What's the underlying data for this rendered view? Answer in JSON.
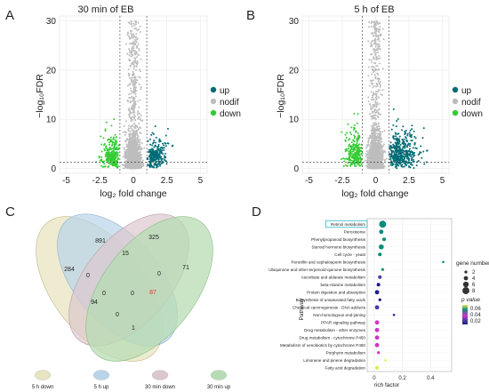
{
  "panels": {
    "A": {
      "letter": "A",
      "title": "30 min of EB"
    },
    "B": {
      "letter": "B",
      "title": "5 h of EB"
    },
    "C": {
      "letter": "C"
    },
    "D": {
      "letter": "D"
    }
  },
  "volcano": {
    "ylabel": "−log₁₀FDR",
    "xlabel": "log₂ fold change",
    "xticks": [
      "-5",
      "-2.5",
      "0",
      "2.5",
      "5"
    ],
    "yticks": [
      "0",
      "10",
      "20",
      "30"
    ],
    "legend": [
      {
        "label": "up",
        "color": "#006d77"
      },
      {
        "label": "nodif",
        "color": "#bdbdbd"
      },
      {
        "label": "down",
        "color": "#33cc33"
      }
    ]
  },
  "venn": {
    "numbers": {
      "n284": "284",
      "n891": "891",
      "n325": "325",
      "n71": "71",
      "n15": "15",
      "n0a": "0",
      "n0b": "0",
      "n0c": "0",
      "n0d": "0",
      "n0e": "0",
      "n94": "94",
      "n87": "87",
      "n1": "1"
    },
    "legend": [
      {
        "label": "5 h down",
        "color": "#e8e4c0"
      },
      {
        "label": "5 h up",
        "color": "#b9d4ea"
      },
      {
        "label": "30 min down",
        "color": "#dcc7cd"
      },
      {
        "label": "30 min up",
        "color": "#b7dcb3"
      }
    ]
  },
  "chart_data": {
    "type": "scatter",
    "ylabel": "Pathway",
    "xlabel": "rich factor",
    "xticks": [
      "0",
      "0.2",
      "0.4"
    ],
    "xlim": [
      -0.05,
      0.55
    ],
    "highlight": "Retinol metabolism",
    "pathways": [
      {
        "name": "Retinol metabolism",
        "x": 0.06,
        "size": 8,
        "p": 0.06
      },
      {
        "name": "Peroxisome",
        "x": 0.05,
        "size": 4,
        "p": 0.06
      },
      {
        "name": "Phenylpropanoid biosynthesis",
        "x": 0.07,
        "size": 3,
        "p": 0.06
      },
      {
        "name": "Steroid hormone biosynthesis",
        "x": 0.05,
        "size": 5,
        "p": 0.06
      },
      {
        "name": "Cell cycle - yeast",
        "x": 0.04,
        "size": 3,
        "p": 0.06
      },
      {
        "name": "Penicillin and cephalosporin biosynthesis",
        "x": 0.49,
        "size": 1,
        "p": 0.06
      },
      {
        "name": "Ubiquinone and other terpenoid-quinone biosynthesis",
        "x": 0.06,
        "size": 2,
        "p": 0.05
      },
      {
        "name": "Ascorbate and aldarate metabolism",
        "x": 0.04,
        "size": 3,
        "p": 0.03
      },
      {
        "name": "beta-Alanine metabolism",
        "x": 0.03,
        "size": 3,
        "p": 0.02
      },
      {
        "name": "Protein digestion and absorption",
        "x": 0.02,
        "size": 4,
        "p": 0.02
      },
      {
        "name": "Biosynthesis of unsaturated fatty acids",
        "x": 0.04,
        "size": 2,
        "p": 0.02
      },
      {
        "name": "Chemical carcinogenesis - DNA adducts",
        "x": 0.02,
        "size": 4,
        "p": 0.03
      },
      {
        "name": "Non-homologous end-joining",
        "x": 0.14,
        "size": 1,
        "p": 0.02
      },
      {
        "name": "PPAR signaling pathway",
        "x": 0.02,
        "size": 4,
        "p": 0.04
      },
      {
        "name": "Drug metabolism - other enzymes",
        "x": 0.02,
        "size": 4,
        "p": 0.04
      },
      {
        "name": "Drug metabolism - cytochrome P450",
        "x": 0.02,
        "size": 4,
        "p": 0.04
      },
      {
        "name": "Metabolism of xenobiotics by cytochrome P450",
        "x": 0.02,
        "size": 4,
        "p": 0.04
      },
      {
        "name": "Porphyrin metabolism",
        "x": 0.03,
        "size": 2,
        "p": 0.05
      },
      {
        "name": "Limonene and pinene degradation",
        "x": 0.08,
        "size": 1,
        "p": 0.06
      },
      {
        "name": "Fatty acid degradation",
        "x": 0.02,
        "size": 3,
        "p": 0.06
      }
    ],
    "size_legend": {
      "title": "gene number",
      "values": [
        "2",
        "4",
        "6",
        "8"
      ]
    },
    "color_legend": {
      "title": "p value",
      "values": [
        "0.06",
        "0.04",
        "0.02"
      ]
    }
  }
}
